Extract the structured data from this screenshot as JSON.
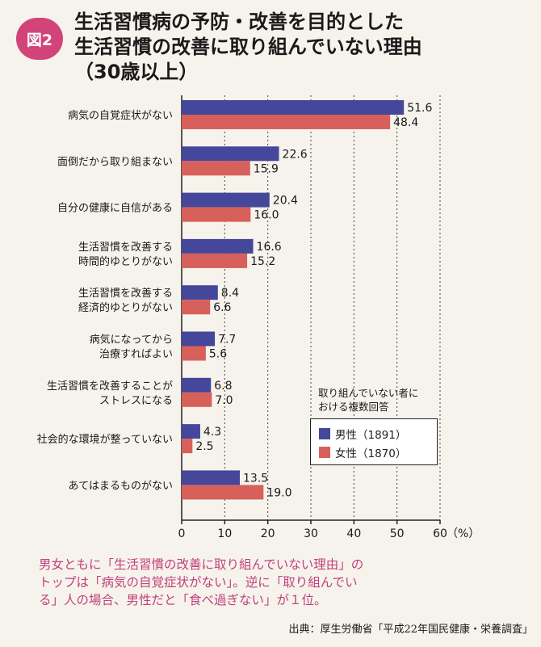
{
  "figure": {
    "badge": "図2",
    "title_lines": [
      "生活習慣病の予防・改善を目的とした",
      "生活習慣の改善に取り組んでいない理由",
      "（30歳以上）"
    ]
  },
  "legend": {
    "note_lines": [
      "取り組んでいない者に",
      "おける複数回答"
    ],
    "male_label": "男性（1891）",
    "female_label": "女性（1870）"
  },
  "caption_lines": [
    "男女ともに「生活習慣の改善に取り組んでいない理由」の",
    "トップは「病気の自覚症状がない」。逆に「取り組んでい",
    "る」人の場合、男性だと「食べ過ぎない」が１位。"
  ],
  "source": "出典：厚生労働省「平成22年国民健康・栄養調査」",
  "colors": {
    "male": "#45479a",
    "female": "#d8605a",
    "gridline": "#444444",
    "axis": "#222222"
  },
  "chart_data": {
    "type": "bar",
    "orientation": "horizontal",
    "categories": [
      [
        "病気の自覚症状がない"
      ],
      [
        "面倒だから取り組まない"
      ],
      [
        "自分の健康に自信がある"
      ],
      [
        "生活習慣を改善する",
        "時間的ゆとりがない"
      ],
      [
        "生活習慣を改善する",
        "経済的ゆとりがない"
      ],
      [
        "病気になってから",
        "治療すればよい"
      ],
      [
        "生活習慣を改善することが",
        "ストレスになる"
      ],
      [
        "社会的な環境が整っていない"
      ],
      [
        "あてはまるものがない"
      ]
    ],
    "series": [
      {
        "name": "男性（1891）",
        "values": [
          51.6,
          22.6,
          20.4,
          16.6,
          8.4,
          7.7,
          6.8,
          4.3,
          13.5
        ],
        "labels": [
          "51.6",
          "22.6",
          "20.4",
          "16.6",
          "8.4",
          "7.7",
          "6.8",
          "4.3",
          "13.5"
        ]
      },
      {
        "name": "女性（1870）",
        "values": [
          48.4,
          15.9,
          16.0,
          15.2,
          6.6,
          5.6,
          7.0,
          2.5,
          19.0
        ],
        "labels": [
          "48.4",
          "15.9",
          "16.0",
          "15.2",
          "6.6",
          "5.6",
          "7.0",
          "2.5",
          "19.0"
        ]
      }
    ],
    "x_ticks": [
      "0",
      "10",
      "20",
      "30",
      "40",
      "50",
      "60"
    ],
    "xlim": [
      0,
      60
    ],
    "unit": "（%）",
    "grid": "vertical dashed",
    "legend_position": "bottom-right"
  }
}
